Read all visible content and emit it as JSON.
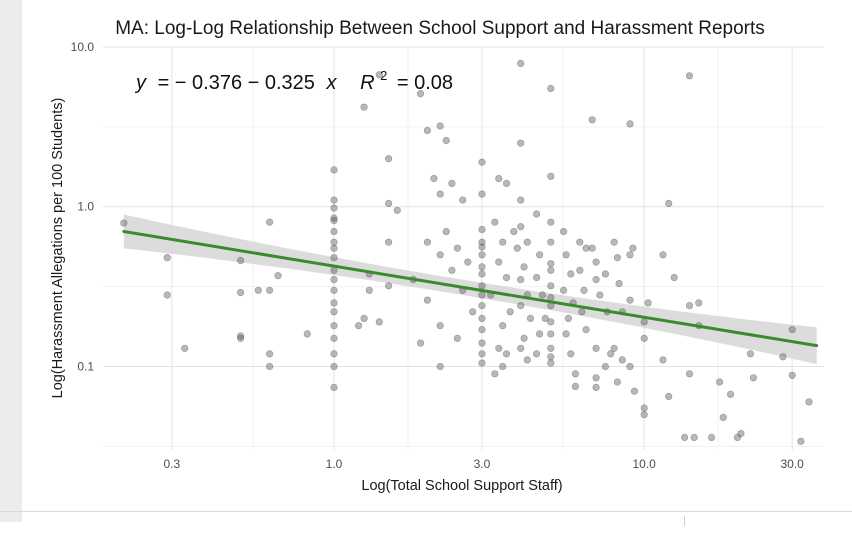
{
  "chart_data": {
    "type": "scatter",
    "title": "MA: Log-Log Relationship Between School Support and Harassment Reports",
    "xlabel": "Log(Total School Support Staff)",
    "ylabel": "Log(Harassment Allegations per 100 Students)",
    "x_scale": "log10",
    "y_scale": "log10",
    "xlim": [
      0.18,
      38
    ],
    "ylim": [
      0.03,
      10
    ],
    "x_ticks": [
      0.3,
      1.0,
      3.0,
      10.0,
      30.0
    ],
    "x_tick_labels": [
      "0.3",
      "1.0",
      "3.0",
      "10.0",
      "30.0"
    ],
    "y_ticks": [
      0.1,
      1.0,
      10.0
    ],
    "y_tick_labels": [
      "0.1",
      "1.0",
      "10.0"
    ],
    "grid": true,
    "annotation": {
      "text": "y = − 0.376 − 0.325 x   R² = 0.08",
      "equation_y": "y",
      "equation_rhs": "= − 0.376 − 0.325",
      "equation_x": "x",
      "r_label": "R",
      "r_exponent": "2",
      "r_value": "= 0.08"
    },
    "fit": {
      "x_range": [
        0.21,
        36
      ],
      "y_start": 0.7,
      "y_end": 0.135,
      "color": "#3a8a2e",
      "band_color": "#d6d6d6"
    },
    "point_color": "#555555",
    "points": [
      [
        0.21,
        0.79
      ],
      [
        0.29,
        0.48
      ],
      [
        0.29,
        0.28
      ],
      [
        0.33,
        0.13
      ],
      [
        0.5,
        0.46
      ],
      [
        0.5,
        0.29
      ],
      [
        0.5,
        0.15
      ],
      [
        0.5,
        0.155
      ],
      [
        0.62,
        0.8
      ],
      [
        0.62,
        0.12
      ],
      [
        0.62,
        0.1
      ],
      [
        0.62,
        0.3
      ],
      [
        0.66,
        0.37
      ],
      [
        0.57,
        0.3
      ],
      [
        0.82,
        0.16
      ],
      [
        1.0,
        1.7
      ],
      [
        1.0,
        1.1
      ],
      [
        1.0,
        0.98
      ],
      [
        1.0,
        0.82
      ],
      [
        1.0,
        0.7
      ],
      [
        1.0,
        0.55
      ],
      [
        1.0,
        0.48
      ],
      [
        1.0,
        0.4
      ],
      [
        1.0,
        0.35
      ],
      [
        1.0,
        0.3
      ],
      [
        1.0,
        0.25
      ],
      [
        1.0,
        0.22
      ],
      [
        1.0,
        0.18
      ],
      [
        1.0,
        0.15
      ],
      [
        1.0,
        0.12
      ],
      [
        1.0,
        0.1
      ],
      [
        1.0,
        0.074
      ],
      [
        1.0,
        0.85
      ],
      [
        1.0,
        0.6
      ],
      [
        1.25,
        4.2
      ],
      [
        1.4,
        6.7
      ],
      [
        1.5,
        2.0
      ],
      [
        1.5,
        1.05
      ],
      [
        1.5,
        0.6
      ],
      [
        1.6,
        0.95
      ],
      [
        1.3,
        0.38
      ],
      [
        1.3,
        0.3
      ],
      [
        1.2,
        0.18
      ],
      [
        1.4,
        0.19
      ],
      [
        1.5,
        0.32
      ],
      [
        1.25,
        0.2
      ],
      [
        1.9,
        5.1
      ],
      [
        2.0,
        3.0
      ],
      [
        2.2,
        3.2
      ],
      [
        2.3,
        2.6
      ],
      [
        2.1,
        1.5
      ],
      [
        2.2,
        1.2
      ],
      [
        2.4,
        1.4
      ],
      [
        2.0,
        0.6
      ],
      [
        2.2,
        0.5
      ],
      [
        2.4,
        0.4
      ],
      [
        1.8,
        0.35
      ],
      [
        2.0,
        0.26
      ],
      [
        2.2,
        0.18
      ],
      [
        1.9,
        0.14
      ],
      [
        2.2,
        0.1
      ],
      [
        2.3,
        0.7
      ],
      [
        2.6,
        1.1
      ],
      [
        2.5,
        0.55
      ],
      [
        2.7,
        0.45
      ],
      [
        2.6,
        0.3
      ],
      [
        2.8,
        0.22
      ],
      [
        2.5,
        0.15
      ],
      [
        3.0,
        1.9
      ],
      [
        3.0,
        1.2
      ],
      [
        3.0,
        0.72
      ],
      [
        3.0,
        0.56
      ],
      [
        3.0,
        0.5
      ],
      [
        3.0,
        0.38
      ],
      [
        3.0,
        0.32
      ],
      [
        3.0,
        0.28
      ],
      [
        3.0,
        0.24
      ],
      [
        3.0,
        0.2
      ],
      [
        3.0,
        0.17
      ],
      [
        3.0,
        0.14
      ],
      [
        3.0,
        0.12
      ],
      [
        3.0,
        0.105
      ],
      [
        3.0,
        0.6
      ],
      [
        3.0,
        0.42
      ],
      [
        3.4,
        1.5
      ],
      [
        3.6,
        1.4
      ],
      [
        3.3,
        0.8
      ],
      [
        3.5,
        0.6
      ],
      [
        3.4,
        0.45
      ],
      [
        3.6,
        0.36
      ],
      [
        3.2,
        0.28
      ],
      [
        3.7,
        0.22
      ],
      [
        3.5,
        0.18
      ],
      [
        3.4,
        0.13
      ],
      [
        3.6,
        0.12
      ],
      [
        3.5,
        0.1
      ],
      [
        3.3,
        0.09
      ],
      [
        3.8,
        0.7
      ],
      [
        3.9,
        0.55
      ],
      [
        4.0,
        7.9
      ],
      [
        4.0,
        2.5
      ],
      [
        4.0,
        1.1
      ],
      [
        4.0,
        0.75
      ],
      [
        4.2,
        0.6
      ],
      [
        4.1,
        0.42
      ],
      [
        4.0,
        0.35
      ],
      [
        4.2,
        0.28
      ],
      [
        4.0,
        0.24
      ],
      [
        4.3,
        0.2
      ],
      [
        4.1,
        0.15
      ],
      [
        4.0,
        0.13
      ],
      [
        4.2,
        0.11
      ],
      [
        4.5,
        0.9
      ],
      [
        4.6,
        0.5
      ],
      [
        4.5,
        0.36
      ],
      [
        4.7,
        0.28
      ],
      [
        4.8,
        0.2
      ],
      [
        4.6,
        0.16
      ],
      [
        4.5,
        0.12
      ],
      [
        5.0,
        5.5
      ],
      [
        5.0,
        1.55
      ],
      [
        5.0,
        0.8
      ],
      [
        5.0,
        0.6
      ],
      [
        5.0,
        0.44
      ],
      [
        5.0,
        0.4
      ],
      [
        5.0,
        0.32
      ],
      [
        5.0,
        0.27
      ],
      [
        5.0,
        0.24
      ],
      [
        5.0,
        0.19
      ],
      [
        5.0,
        0.16
      ],
      [
        5.0,
        0.13
      ],
      [
        5.0,
        0.115
      ],
      [
        5.0,
        0.105
      ],
      [
        5.5,
        0.7
      ],
      [
        5.6,
        0.5
      ],
      [
        5.8,
        0.38
      ],
      [
        5.5,
        0.3
      ],
      [
        5.9,
        0.25
      ],
      [
        5.7,
        0.2
      ],
      [
        5.6,
        0.16
      ],
      [
        5.8,
        0.12
      ],
      [
        6.0,
        0.09
      ],
      [
        6.0,
        0.075
      ],
      [
        6.2,
        0.6
      ],
      [
        6.5,
        0.55
      ],
      [
        6.2,
        0.4
      ],
      [
        6.4,
        0.3
      ],
      [
        6.3,
        0.22
      ],
      [
        6.5,
        0.17
      ],
      [
        6.8,
        3.5
      ],
      [
        6.8,
        0.55
      ],
      [
        7.0,
        0.45
      ],
      [
        7.0,
        0.35
      ],
      [
        7.2,
        0.28
      ],
      [
        7.0,
        0.13
      ],
      [
        7.0,
        0.085
      ],
      [
        7.0,
        0.074
      ],
      [
        7.5,
        0.38
      ],
      [
        7.6,
        0.22
      ],
      [
        7.8,
        0.12
      ],
      [
        7.5,
        0.1
      ],
      [
        8.0,
        0.6
      ],
      [
        8.2,
        0.48
      ],
      [
        8.3,
        0.33
      ],
      [
        8.5,
        0.22
      ],
      [
        8.0,
        0.13
      ],
      [
        8.5,
        0.11
      ],
      [
        8.2,
        0.08
      ],
      [
        9.0,
        3.3
      ],
      [
        9.0,
        0.5
      ],
      [
        9.2,
        0.55
      ],
      [
        9.0,
        0.26
      ],
      [
        9.0,
        0.1
      ],
      [
        9.3,
        0.07
      ],
      [
        10.0,
        0.19
      ],
      [
        10.0,
        0.15
      ],
      [
        10.0,
        0.05
      ],
      [
        10.3,
        0.25
      ],
      [
        10.0,
        0.055
      ],
      [
        11.5,
        0.5
      ],
      [
        12.0,
        1.05
      ],
      [
        11.5,
        0.11
      ],
      [
        12.0,
        0.065
      ],
      [
        12.5,
        0.36
      ],
      [
        14.0,
        6.6
      ],
      [
        14.0,
        0.24
      ],
      [
        14.0,
        0.09
      ],
      [
        15.0,
        0.25
      ],
      [
        15.0,
        0.18
      ],
      [
        13.5,
        0.036
      ],
      [
        14.5,
        0.036
      ],
      [
        16.5,
        0.036
      ],
      [
        17.5,
        0.08
      ],
      [
        18.0,
        0.048
      ],
      [
        20.0,
        0.036
      ],
      [
        19.0,
        0.067
      ],
      [
        20.5,
        0.038
      ],
      [
        22.5,
        0.085
      ],
      [
        28.0,
        0.115
      ],
      [
        30.0,
        0.17
      ],
      [
        30.0,
        0.088
      ],
      [
        32.0,
        0.034
      ],
      [
        34.0,
        0.06
      ],
      [
        22.0,
        0.12
      ]
    ]
  }
}
